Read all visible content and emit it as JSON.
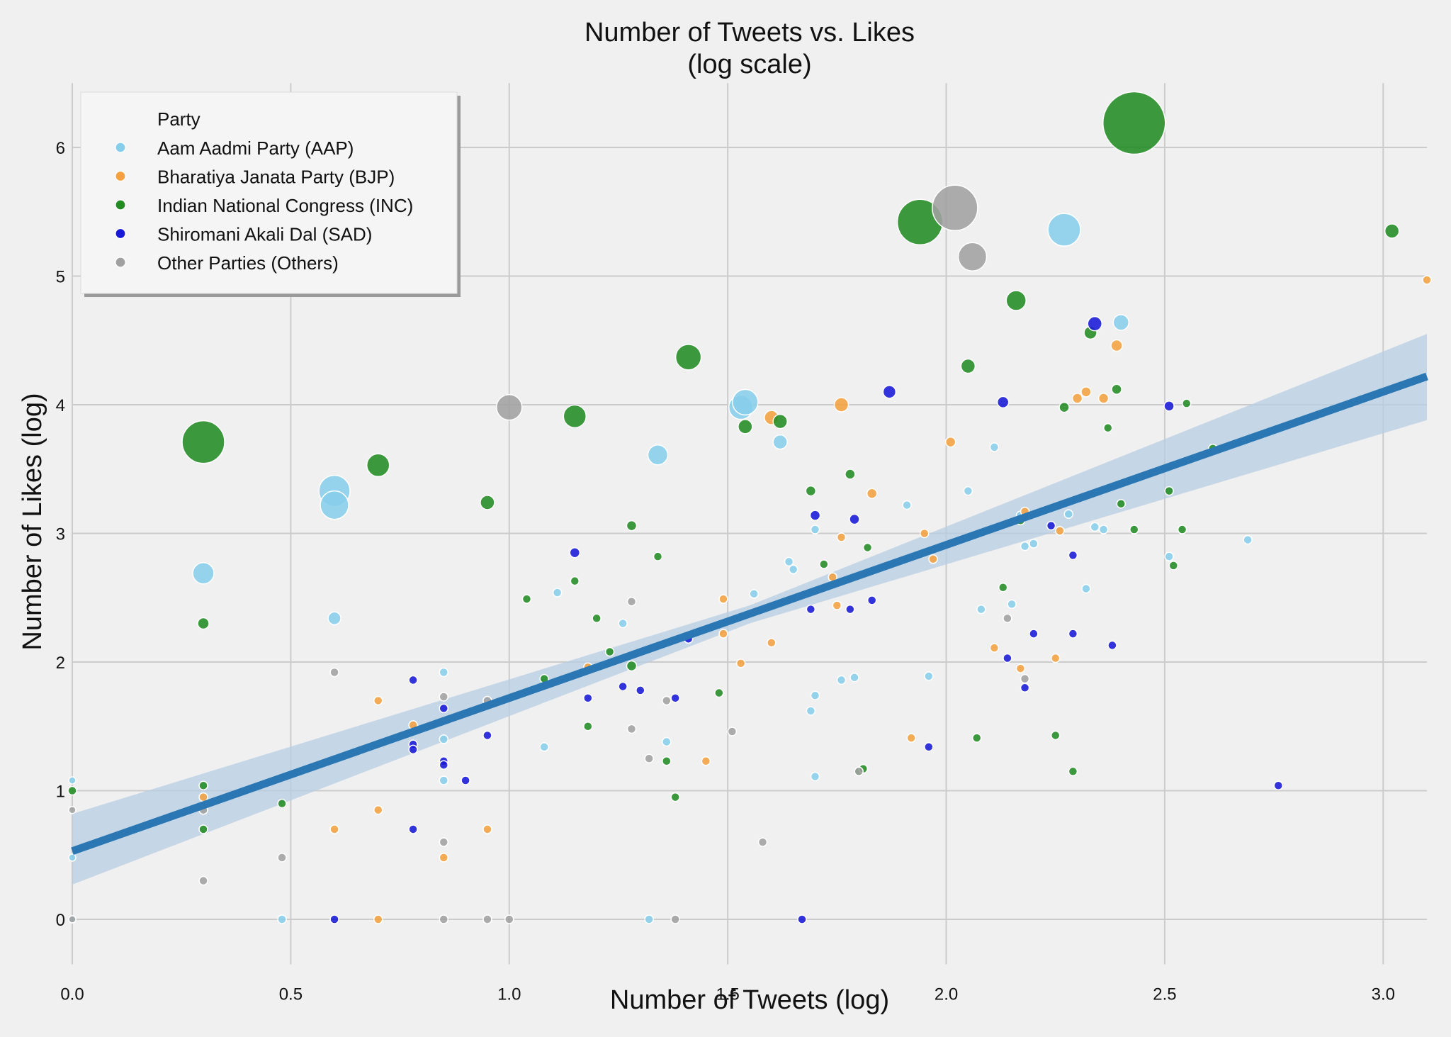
{
  "chart_data": {
    "type": "scatter",
    "title": [
      "Number of Tweets vs. Likes",
      "(log scale)"
    ],
    "xlabel": "Number of Tweets (log)",
    "ylabel": "Number of Likes (log)",
    "xlim": [
      0.0,
      3.1
    ],
    "ylim": [
      -0.35,
      6.5
    ],
    "x_ticks": [
      "0.0",
      "0.5",
      "1.0",
      "1.5",
      "2.0",
      "2.5",
      "3.0"
    ],
    "y_ticks": [
      "0",
      "1",
      "2",
      "3",
      "4",
      "5",
      "6"
    ],
    "grid": true,
    "background": "#f0f0f0",
    "grid_color": "#cbcbcb",
    "legend": {
      "title": "Party",
      "placement": "top-left",
      "entries": [
        {
          "name": "Aam Aadmi Party (AAP)",
          "color": "#87ceeb"
        },
        {
          "name": "Bharatiya Janata Party (BJP)",
          "color": "#f4a040"
        },
        {
          "name": "Indian National Congress (INC)",
          "color": "#228b22"
        },
        {
          "name": "Shiromani Akali Dal (SAD)",
          "color": "#1818d8"
        },
        {
          "name": "Other Parties (Others)",
          "color": "#a0a0a0"
        }
      ]
    },
    "regression": {
      "color": "#2a77b4",
      "band_color": "#b7cfe3",
      "start": {
        "x": 0.0,
        "y": 0.53,
        "lo": 0.27,
        "hi": 0.82
      },
      "mid": {
        "x": 1.55,
        "y": 2.37,
        "lo": 2.3,
        "hi": 2.44
      },
      "end": {
        "x": 3.1,
        "y": 4.22,
        "lo": 3.88,
        "hi": 4.55
      }
    },
    "series": [
      {
        "name": "Aam Aadmi Party (AAP)",
        "color": "#87ceeb",
        "points": [
          [
            0.0,
            0.0,
            5
          ],
          [
            0.0,
            0.48,
            5
          ],
          [
            0.0,
            1.08,
            5
          ],
          [
            0.3,
            2.69,
            15
          ],
          [
            0.6,
            3.33,
            22
          ],
          [
            0.6,
            3.22,
            20
          ],
          [
            0.6,
            2.34,
            9
          ],
          [
            0.48,
            0.0,
            6
          ],
          [
            0.85,
            1.92,
            6
          ],
          [
            0.85,
            1.4,
            6
          ],
          [
            0.85,
            1.08,
            6
          ],
          [
            1.08,
            1.34,
            6
          ],
          [
            1.11,
            2.54,
            6
          ],
          [
            1.26,
            2.3,
            6
          ],
          [
            1.32,
            0.0,
            6
          ],
          [
            1.34,
            3.61,
            14
          ],
          [
            1.36,
            1.38,
            6
          ],
          [
            1.53,
            3.98,
            17
          ],
          [
            1.54,
            4.02,
            18
          ],
          [
            1.56,
            2.53,
            6
          ],
          [
            1.62,
            3.71,
            10
          ],
          [
            1.64,
            2.78,
            6
          ],
          [
            1.65,
            2.72,
            6
          ],
          [
            1.69,
            1.62,
            6
          ],
          [
            1.7,
            3.03,
            6
          ],
          [
            1.7,
            1.74,
            6
          ],
          [
            1.7,
            1.11,
            6
          ],
          [
            1.76,
            1.86,
            6
          ],
          [
            1.79,
            1.88,
            6
          ],
          [
            1.91,
            3.22,
            6
          ],
          [
            1.96,
            1.89,
            6
          ],
          [
            2.05,
            3.33,
            6
          ],
          [
            2.08,
            2.41,
            6
          ],
          [
            2.11,
            3.67,
            6
          ],
          [
            2.15,
            2.45,
            6
          ],
          [
            2.17,
            3.14,
            6
          ],
          [
            2.18,
            2.9,
            6
          ],
          [
            2.2,
            2.92,
            6
          ],
          [
            2.27,
            5.36,
            23
          ],
          [
            2.28,
            3.15,
            6
          ],
          [
            2.32,
            2.57,
            6
          ],
          [
            2.34,
            3.05,
            6
          ],
          [
            2.36,
            3.03,
            6
          ],
          [
            2.4,
            4.64,
            11
          ],
          [
            2.51,
            2.82,
            6
          ],
          [
            2.69,
            2.95,
            6
          ]
        ]
      },
      {
        "name": "Bharatiya Janata Party (BJP)",
        "color": "#f4a040",
        "points": [
          [
            0.3,
            0.95,
            6
          ],
          [
            0.6,
            0.7,
            6
          ],
          [
            0.7,
            0.0,
            6
          ],
          [
            0.7,
            0.85,
            6
          ],
          [
            0.7,
            1.7,
            6
          ],
          [
            0.78,
            1.51,
            6
          ],
          [
            0.85,
            0.48,
            6
          ],
          [
            0.95,
            0.7,
            6
          ],
          [
            1.18,
            1.96,
            6
          ],
          [
            1.45,
            1.23,
            6
          ],
          [
            1.49,
            2.49,
            6
          ],
          [
            1.49,
            2.22,
            6
          ],
          [
            1.53,
            1.99,
            6
          ],
          [
            1.6,
            3.9,
            10
          ],
          [
            1.6,
            2.15,
            6
          ],
          [
            1.74,
            2.66,
            6
          ],
          [
            1.75,
            2.44,
            6
          ],
          [
            1.76,
            2.97,
            6
          ],
          [
            1.76,
            4.0,
            10
          ],
          [
            1.83,
            3.31,
            7
          ],
          [
            1.92,
            1.41,
            6
          ],
          [
            1.95,
            3.0,
            6
          ],
          [
            1.97,
            2.8,
            6
          ],
          [
            2.01,
            3.71,
            7
          ],
          [
            2.11,
            2.11,
            6
          ],
          [
            2.18,
            3.17,
            6
          ],
          [
            2.17,
            1.95,
            6
          ],
          [
            2.25,
            2.03,
            6
          ],
          [
            2.26,
            3.02,
            6
          ],
          [
            2.3,
            4.05,
            7
          ],
          [
            2.32,
            4.1,
            7
          ],
          [
            2.36,
            4.05,
            7
          ],
          [
            2.39,
            4.46,
            8
          ],
          [
            3.1,
            4.97,
            6
          ]
        ]
      },
      {
        "name": "Indian National Congress (INC)",
        "color": "#228b22",
        "points": [
          [
            0.0,
            1.0,
            6
          ],
          [
            0.3,
            3.71,
            30
          ],
          [
            0.3,
            2.3,
            8
          ],
          [
            0.3,
            1.04,
            6
          ],
          [
            0.3,
            0.7,
            6
          ],
          [
            0.48,
            0.9,
            6
          ],
          [
            0.7,
            3.53,
            16
          ],
          [
            0.95,
            3.24,
            10
          ],
          [
            1.04,
            2.49,
            6
          ],
          [
            1.08,
            1.87,
            6
          ],
          [
            1.15,
            3.91,
            16
          ],
          [
            1.15,
            2.63,
            6
          ],
          [
            1.18,
            1.5,
            6
          ],
          [
            1.2,
            2.34,
            6
          ],
          [
            1.23,
            2.08,
            6
          ],
          [
            1.28,
            3.06,
            7
          ],
          [
            1.28,
            1.97,
            7
          ],
          [
            1.34,
            2.82,
            6
          ],
          [
            1.36,
            1.23,
            6
          ],
          [
            1.38,
            0.95,
            6
          ],
          [
            1.41,
            4.37,
            18
          ],
          [
            1.48,
            1.76,
            6
          ],
          [
            1.54,
            3.83,
            10
          ],
          [
            1.62,
            3.87,
            10
          ],
          [
            1.69,
            3.33,
            7
          ],
          [
            1.72,
            2.76,
            6
          ],
          [
            1.78,
            3.46,
            7
          ],
          [
            1.8,
            1.15,
            6
          ],
          [
            1.81,
            1.17,
            6
          ],
          [
            1.82,
            2.89,
            6
          ],
          [
            1.94,
            5.42,
            32
          ],
          [
            2.05,
            4.3,
            10
          ],
          [
            2.07,
            1.41,
            6
          ],
          [
            2.13,
            2.58,
            6
          ],
          [
            2.16,
            4.81,
            14
          ],
          [
            2.17,
            3.1,
            6
          ],
          [
            2.25,
            1.43,
            6
          ],
          [
            2.27,
            3.98,
            7
          ],
          [
            2.29,
            1.15,
            6
          ],
          [
            2.33,
            4.56,
            9
          ],
          [
            2.37,
            3.82,
            6
          ],
          [
            2.39,
            4.12,
            7
          ],
          [
            2.4,
            3.23,
            6
          ],
          [
            2.43,
            6.19,
            44
          ],
          [
            2.43,
            3.03,
            6
          ],
          [
            2.51,
            3.33,
            6
          ],
          [
            2.52,
            2.75,
            6
          ],
          [
            2.54,
            3.03,
            6
          ],
          [
            2.55,
            4.01,
            6
          ],
          [
            2.61,
            3.66,
            6
          ],
          [
            3.02,
            5.35,
            10
          ]
        ]
      },
      {
        "name": "Shiromani Akali Dal (SAD)",
        "color": "#1818d8",
        "points": [
          [
            0.6,
            0.0,
            6
          ],
          [
            0.78,
            1.86,
            6
          ],
          [
            0.78,
            1.36,
            6
          ],
          [
            0.78,
            1.32,
            6
          ],
          [
            0.78,
            0.7,
            6
          ],
          [
            0.85,
            1.64,
            6
          ],
          [
            0.85,
            1.23,
            6
          ],
          [
            0.85,
            1.2,
            6
          ],
          [
            0.9,
            1.08,
            6
          ],
          [
            0.95,
            1.43,
            6
          ],
          [
            1.15,
            2.85,
            7
          ],
          [
            1.18,
            1.72,
            6
          ],
          [
            1.26,
            1.81,
            6
          ],
          [
            1.3,
            1.78,
            6
          ],
          [
            1.38,
            1.72,
            6
          ],
          [
            1.41,
            2.18,
            6
          ],
          [
            1.67,
            0.0,
            6
          ],
          [
            1.69,
            2.41,
            6
          ],
          [
            1.7,
            3.14,
            7
          ],
          [
            1.78,
            2.41,
            6
          ],
          [
            1.79,
            3.11,
            7
          ],
          [
            1.83,
            2.48,
            6
          ],
          [
            1.87,
            4.1,
            9
          ],
          [
            1.96,
            1.34,
            6
          ],
          [
            2.13,
            4.02,
            8
          ],
          [
            2.14,
            2.03,
            6
          ],
          [
            2.18,
            1.8,
            6
          ],
          [
            2.2,
            2.22,
            6
          ],
          [
            2.24,
            3.06,
            6
          ],
          [
            2.29,
            2.83,
            6
          ],
          [
            2.29,
            2.22,
            6
          ],
          [
            2.34,
            4.63,
            10
          ],
          [
            2.38,
            2.13,
            6
          ],
          [
            2.51,
            3.99,
            7
          ],
          [
            2.76,
            1.04,
            6
          ]
        ]
      },
      {
        "name": "Other Parties (Others)",
        "color": "#a0a0a0",
        "points": [
          [
            0.0,
            0.85,
            5
          ],
          [
            0.0,
            0.0,
            5
          ],
          [
            0.3,
            0.3,
            6
          ],
          [
            0.3,
            0.85,
            6
          ],
          [
            0.48,
            0.48,
            6
          ],
          [
            0.6,
            1.92,
            6
          ],
          [
            0.85,
            1.73,
            6
          ],
          [
            0.85,
            0.6,
            6
          ],
          [
            0.85,
            0.0,
            6
          ],
          [
            0.95,
            1.7,
            6
          ],
          [
            0.95,
            0.0,
            6
          ],
          [
            1.0,
            0.0,
            6
          ],
          [
            1.0,
            3.98,
            18
          ],
          [
            1.28,
            2.47,
            6
          ],
          [
            1.28,
            1.48,
            6
          ],
          [
            1.32,
            1.25,
            6
          ],
          [
            1.36,
            1.7,
            6
          ],
          [
            1.38,
            0.0,
            6
          ],
          [
            1.51,
            1.46,
            6
          ],
          [
            1.58,
            0.6,
            6
          ],
          [
            1.8,
            1.15,
            6
          ],
          [
            2.02,
            5.53,
            32
          ],
          [
            2.06,
            5.15,
            20
          ],
          [
            2.14,
            2.34,
            6
          ],
          [
            2.18,
            1.87,
            6
          ]
        ]
      }
    ]
  }
}
